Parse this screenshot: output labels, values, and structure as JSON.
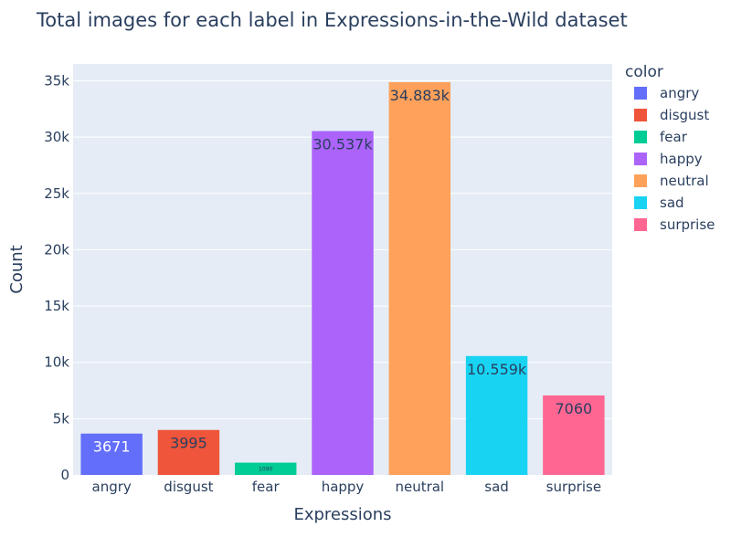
{
  "chart_data": {
    "type": "bar",
    "title": "Total images for each label in Expressions-in-the-Wild dataset",
    "xlabel": "Expressions",
    "ylabel": "Count",
    "ylim": [
      0,
      36500
    ],
    "y_ticks": [
      0,
      5000,
      10000,
      15000,
      20000,
      25000,
      30000,
      35000
    ],
    "y_tick_labels": [
      "0",
      "5k",
      "10k",
      "15k",
      "20k",
      "25k",
      "30k",
      "35k"
    ],
    "categories": [
      "angry",
      "disgust",
      "fear",
      "happy",
      "neutral",
      "sad",
      "surprise"
    ],
    "values": [
      3671,
      3995,
      1090,
      30537,
      34883,
      10559,
      7060
    ],
    "data_labels": [
      "3671",
      "3995",
      "1090",
      "30.537k",
      "34.883k",
      "10.559k",
      "7060"
    ],
    "colors": [
      "#636efa",
      "#EF553B",
      "#00cc96",
      "#ab63fa",
      "#FFA15A",
      "#19d3f3",
      "#FF6692"
    ],
    "label_colors": [
      "#ffffff",
      "#2a3f5f",
      "#2a3f5f",
      "#2a3f5f",
      "#2a3f5f",
      "#2a3f5f",
      "#2a3f5f"
    ],
    "legend": {
      "title": "color",
      "position": "right",
      "entries": [
        "angry",
        "disgust",
        "fear",
        "happy",
        "neutral",
        "sad",
        "surprise"
      ]
    },
    "grid": true,
    "plot_bg": "#e5ecf6"
  }
}
